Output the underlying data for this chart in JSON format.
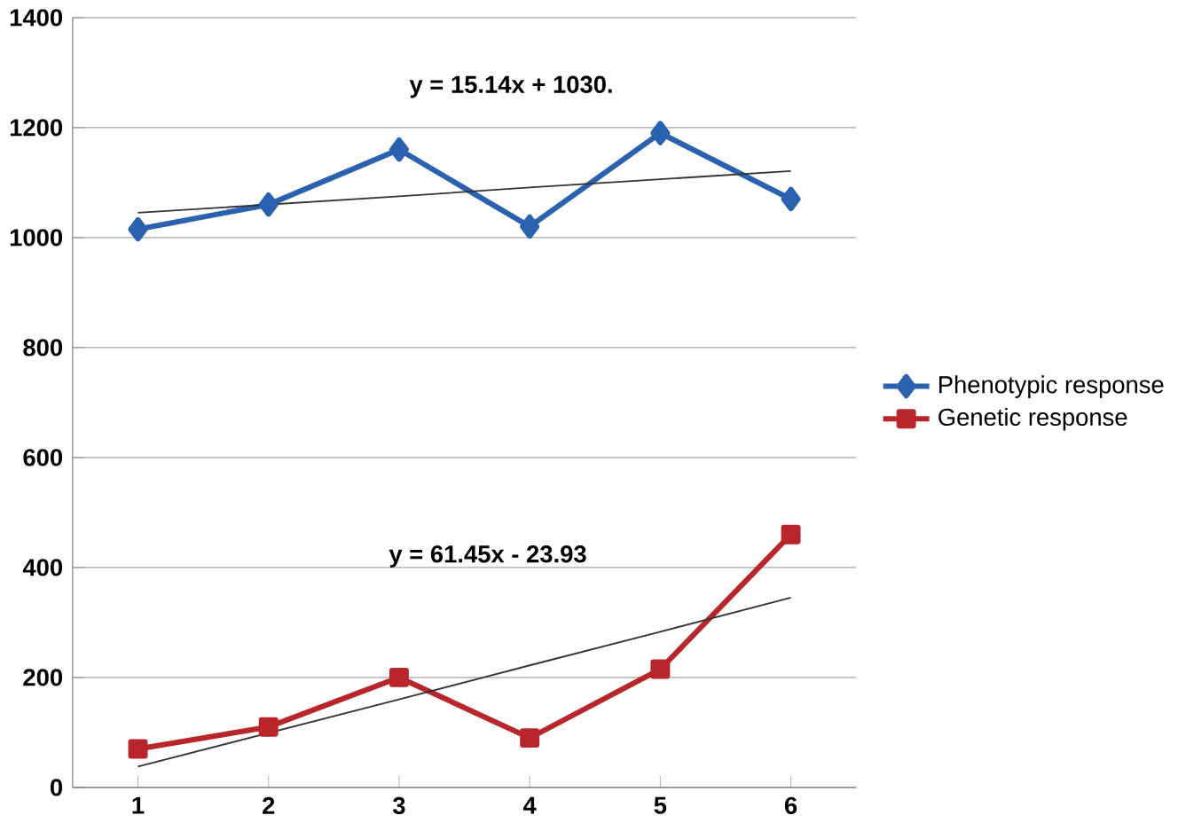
{
  "chart_data": {
    "type": "line",
    "x": [
      1,
      2,
      3,
      4,
      5,
      6
    ],
    "xlim": [
      0.5,
      6.5
    ],
    "xticks": [
      1,
      2,
      3,
      4,
      5,
      6
    ],
    "ylim": [
      0,
      1400
    ],
    "yticks": [
      0,
      200,
      400,
      600,
      800,
      1000,
      1200,
      1400
    ],
    "series": [
      {
        "name": "Phenotypic response",
        "color": "#2a62b0",
        "marker": "diamond",
        "values": [
          1015,
          1060,
          1160,
          1020,
          1190,
          1070
        ]
      },
      {
        "name": "Genetic response",
        "color": "#b8252a",
        "marker": "square",
        "values": [
          70,
          110,
          200,
          90,
          215,
          460
        ]
      },
      {
        "type": "line",
        "color": "#333333",
        "marker": "none",
        "values": [
          1045,
          null,
          1075,
          1091,
          1106,
          1121
        ]
      },
      {
        "type": "line",
        "color": "#333333",
        "marker": "none",
        "values": [
          38,
          null,
          160,
          222,
          283,
          345
        ]
      }
    ],
    "annotations": [
      "y = 15.14x + 1030.",
      "y = 61.45x - 23.93"
    ],
    "grid": "y",
    "legend": "right"
  }
}
